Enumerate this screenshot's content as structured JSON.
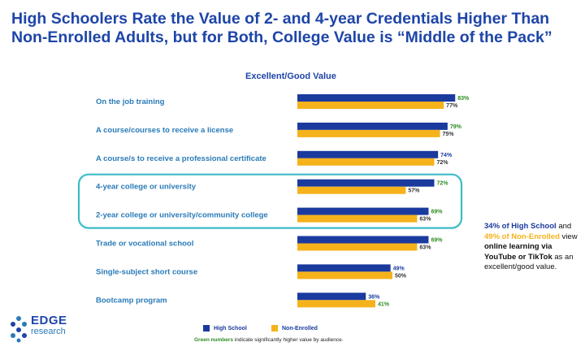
{
  "title": "High Schoolers Rate the Value of 2- and 4-year Credentials Higher Than Non-Enrolled Adults, but for Both, College Value is “Middle of the Pack”",
  "chart_data": {
    "type": "bar",
    "orientation": "horizontal",
    "title": "Excellent/Good Value",
    "categories": [
      "On the job training",
      "A course/courses to receive a license",
      "A course/s to receive a professional certificate",
      "4-year college or university",
      "2-year college or university/community college",
      "Trade or vocational school",
      "Single-subject short course",
      "Bootcamp program"
    ],
    "series": [
      {
        "name": "High School",
        "values": [
          83,
          79,
          74,
          72,
          69,
          69,
          49,
          36
        ],
        "labels": [
          "83%",
          "79%",
          "74%",
          "72%",
          "69%",
          "69%",
          "49%",
          "36%"
        ],
        "significant": [
          true,
          true,
          false,
          true,
          true,
          true,
          false,
          false
        ]
      },
      {
        "name": "Non-Enrolled",
        "values": [
          77,
          75,
          72,
          57,
          63,
          63,
          50,
          41
        ],
        "labels": [
          "77%",
          "75%",
          "72%",
          "57%",
          "63%",
          "63%",
          "50%",
          "41%"
        ],
        "significant": [
          false,
          false,
          false,
          false,
          false,
          false,
          false,
          true
        ]
      }
    ],
    "highlighted_categories": [
      "4-year college or university",
      "2-year college or university/community college"
    ],
    "xlim": [
      0,
      100
    ],
    "legend_position": "bottom"
  },
  "colors": {
    "high_school": "#1a3a9e",
    "non_enrolled": "#f5b21b",
    "significant": "#2e8b23",
    "category_text": "#2a7bb8",
    "highlight_box": "#3bbcc8"
  },
  "callout": {
    "hs_text": "34% of High School",
    "and": " and ",
    "ne_text": "49% of Non-Enrolled",
    "mid": " view ",
    "bold1": "online learning via YouTube or TikTok",
    "tail": " as an excellent/good value."
  },
  "note": {
    "green": "Green numbers",
    "rest": " indicate significantly higher value by audience."
  },
  "logo": {
    "line1": "EDGE",
    "line2": "research"
  }
}
